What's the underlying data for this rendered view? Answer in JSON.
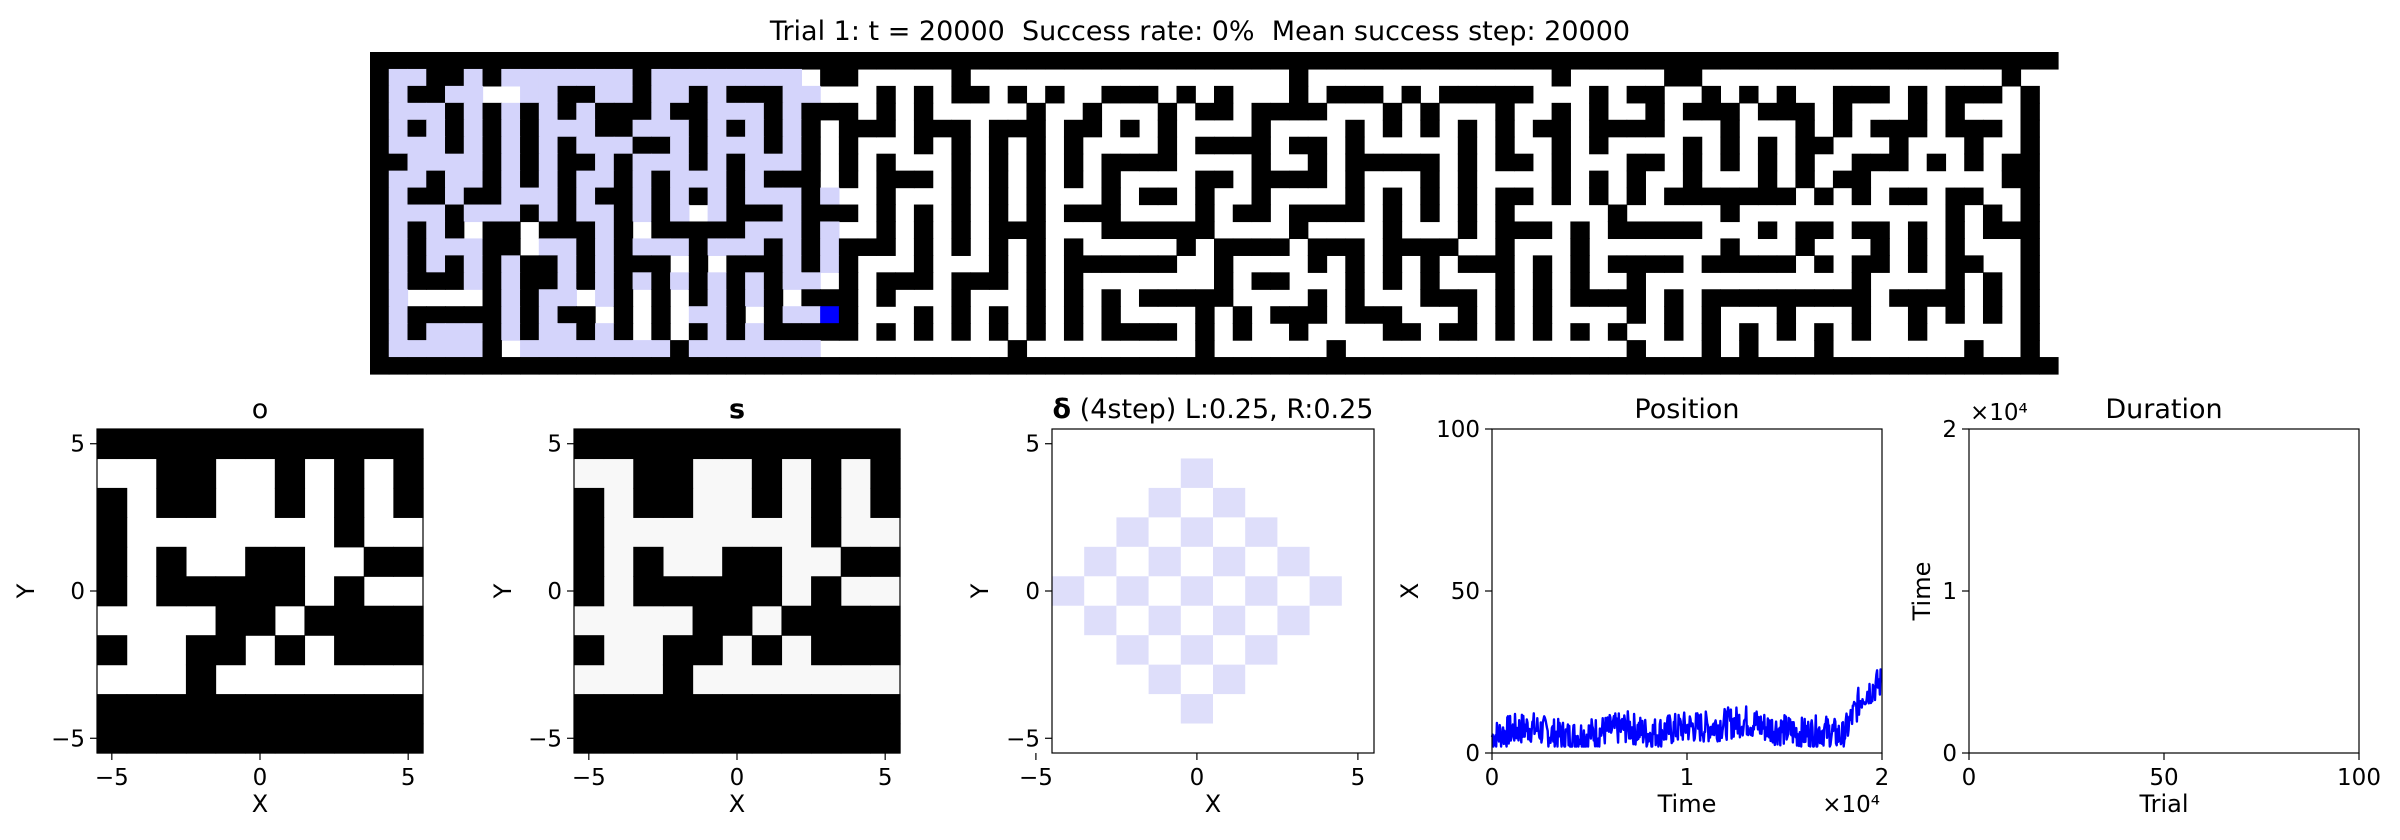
{
  "title": "Trial 1: t = 20000  Success rate: 0%  Mean success step: 20000",
  "colors": {
    "wall": "#000000",
    "path": "#ffffff",
    "visited": "#d4d4fb",
    "agent": "#0000ff",
    "series": "#0000ff",
    "delta_fill": "#dedefa"
  },
  "chart_data": [
    {
      "type": "heatmap",
      "name": "maze",
      "grid": [
        "##########################################################################################",
        "#..##.#.......#.........##.....#.................#.............#.....##................#",
        "#.##......##..#..#.###.....#.#.##.#.#..###.#.#...#.###.#.#####...#.##..#.#.#..###.#.###.#",
        "#...#.#.#.#.###.##...#.###.#.#.....#..#...#.##.####...#.#...#..#.#..#.###.###.#...#.#...#",
        "#.#.#.#.#...##...#.#.#.#.###.###.###.##.#.#....#....#.#.#.#.#.##.####...#...#.#.###.###.#",
        "#...#.#.#.#...##.#...#.#.#...#.#.#.#.#....#.####.##.#.....#.#..#.#....#.#.#.##...#...#..#",
        "##....#.#.##.#...#.#...#.#.#...#.#.#.#.####....#..#.#####.#.##.#...##.#.#.#.#..###.#.#.##",
        "#..#..#.#.#..#.#...#.###.#.###.#.#.#.#.#....##.####.#...#.#....#.#.#..#...#.#.##.......##",
        "#.##.##...#.##.#.#.#...#...#...#.#.#...#.##.#..#....#.#.#.#.##.#.#.#.#######.#.#.##.##..#",
        "#...#...#.#..#.#...###.###.#.#.#.#.#.###....#.##.####.#.#.#.#.....#.....#...........#.#.#",
        "#.#.#.##.###.#.#####...#...#.#.#.###...######....#....#...#.###.#.#####...#.##.##.#.#.###",
        "#.#...##...#.#...#...#.#.###.#.#.#.#.#.....#.####.###.####..#...#.......#...#...#.#.#...#",
        "#.#.#.#.##.#.###.#.###.#.#...#...#.#.######..#....#.#.#.#.###.#.#.####.#####.#.##.#.##..#",
        "#.###.#.##.#.#.#.#.#.#...#.###.###.#.#.......#.##...#.#.#...#.#.#..#...........#....#.#.#",
        "#.....#.#....#.#.#.#.#.###.#...#...#.#.#.#####....#.#...###.#.#.####.#.#########.####.#.#",
        "#.#####.#.##.#.#...#.#...#...#.#.#.#.#.#....#.#.###.###...#.#.#....#.#.#...#...#..#.#.#.#",
        "#.#...#.#..#.#.#.#.#.#####.#.#.#.#.#.#.####.#.#..#....##.##.#.#.#.#..#.#.#.#.#.#..#.....#",
        "#.....#.........#.................#.........#......#...............#...#.#...#.......#..#",
        "##########################################################################################"
      ],
      "visited": [
        [
          1,
          1
        ],
        [
          1,
          2
        ],
        [
          1,
          5
        ],
        [
          1,
          6
        ],
        [
          1,
          7
        ],
        [
          1,
          8
        ],
        [
          1,
          9
        ],
        [
          1,
          10
        ],
        [
          1,
          11
        ],
        [
          1,
          12
        ],
        [
          1,
          13
        ],
        [
          1,
          15
        ],
        [
          1,
          16
        ],
        [
          1,
          17
        ],
        [
          1,
          18
        ],
        [
          1,
          19
        ],
        [
          1,
          20
        ],
        [
          1,
          21
        ],
        [
          1,
          22
        ],
        [
          2,
          1
        ],
        [
          2,
          4
        ],
        [
          2,
          5
        ],
        [
          2,
          8
        ],
        [
          2,
          9
        ],
        [
          2,
          12
        ],
        [
          2,
          13
        ],
        [
          2,
          15
        ],
        [
          2,
          16
        ],
        [
          2,
          18
        ],
        [
          2,
          22
        ],
        [
          2,
          23
        ],
        [
          3,
          1
        ],
        [
          3,
          2
        ],
        [
          3,
          3
        ],
        [
          3,
          5
        ],
        [
          3,
          7
        ],
        [
          3,
          9
        ],
        [
          3,
          11
        ],
        [
          3,
          15
        ],
        [
          3,
          18
        ],
        [
          3,
          19
        ],
        [
          3,
          20
        ],
        [
          3,
          22
        ],
        [
          4,
          1
        ],
        [
          4,
          3
        ],
        [
          4,
          5
        ],
        [
          4,
          7
        ],
        [
          4,
          9
        ],
        [
          4,
          10
        ],
        [
          4,
          11
        ],
        [
          4,
          14
        ],
        [
          4,
          15
        ],
        [
          4,
          16
        ],
        [
          4,
          18
        ],
        [
          4,
          20
        ],
        [
          4,
          22
        ],
        [
          5,
          1
        ],
        [
          5,
          2
        ],
        [
          5,
          3
        ],
        [
          5,
          5
        ],
        [
          5,
          7
        ],
        [
          5,
          9
        ],
        [
          5,
          11
        ],
        [
          5,
          12
        ],
        [
          5,
          13
        ],
        [
          5,
          16
        ],
        [
          5,
          18
        ],
        [
          5,
          19
        ],
        [
          5,
          20
        ],
        [
          5,
          22
        ],
        [
          6,
          2
        ],
        [
          6,
          3
        ],
        [
          6,
          4
        ],
        [
          6,
          5
        ],
        [
          6,
          7
        ],
        [
          6,
          9
        ],
        [
          6,
          12
        ],
        [
          6,
          14
        ],
        [
          6,
          15
        ],
        [
          6,
          16
        ],
        [
          6,
          18
        ],
        [
          6,
          20
        ],
        [
          6,
          21
        ],
        [
          6,
          22
        ],
        [
          7,
          1
        ],
        [
          7,
          2
        ],
        [
          7,
          4
        ],
        [
          7,
          5
        ],
        [
          7,
          7
        ],
        [
          7,
          9
        ],
        [
          7,
          11
        ],
        [
          7,
          12
        ],
        [
          7,
          14
        ],
        [
          7,
          16
        ],
        [
          7,
          17
        ],
        [
          7,
          18
        ],
        [
          7,
          20
        ],
        [
          7,
          22
        ],
        [
          7,
          23
        ],
        [
          8,
          1
        ],
        [
          8,
          2
        ],
        [
          8,
          3
        ],
        [
          8,
          4
        ],
        [
          8,
          5
        ],
        [
          8,
          6
        ],
        [
          8,
          7
        ],
        [
          8,
          8
        ],
        [
          8,
          9
        ],
        [
          8,
          11
        ],
        [
          8,
          14
        ],
        [
          8,
          16
        ],
        [
          8,
          18
        ],
        [
          8,
          20
        ],
        [
          8,
          21
        ],
        [
          8,
          22
        ],
        [
          8,
          23
        ],
        [
          8,
          24
        ],
        [
          9,
          1
        ],
        [
          9,
          2
        ],
        [
          9,
          3
        ],
        [
          9,
          5
        ],
        [
          9,
          6
        ],
        [
          9,
          7
        ],
        [
          9,
          9
        ],
        [
          9,
          10
        ],
        [
          9,
          11
        ],
        [
          9,
          12
        ],
        [
          9,
          14
        ],
        [
          9,
          15
        ],
        [
          9,
          16
        ],
        [
          9,
          18
        ],
        [
          9,
          19
        ],
        [
          9,
          20
        ],
        [
          9,
          21
        ],
        [
          9,
          22
        ],
        [
          9,
          24
        ],
        [
          10,
          1
        ],
        [
          10,
          3
        ],
        [
          10,
          6
        ],
        [
          10,
          9
        ],
        [
          10,
          12
        ],
        [
          10,
          13
        ],
        [
          10,
          16
        ],
        [
          10,
          18
        ],
        [
          10,
          19
        ],
        [
          10,
          20
        ],
        [
          10,
          21
        ],
        [
          10,
          22
        ],
        [
          10,
          24
        ],
        [
          11,
          1
        ],
        [
          11,
          3
        ],
        [
          11,
          4
        ],
        [
          11,
          5
        ],
        [
          11,
          7
        ],
        [
          11,
          9
        ],
        [
          11,
          10
        ],
        [
          11,
          12
        ],
        [
          11,
          13
        ],
        [
          11,
          14
        ],
        [
          11,
          15
        ],
        [
          11,
          16
        ],
        [
          11,
          18
        ],
        [
          11,
          19
        ],
        [
          11,
          20
        ],
        [
          11,
          22
        ],
        [
          11,
          24
        ],
        [
          12,
          1
        ],
        [
          12,
          3
        ],
        [
          12,
          5
        ],
        [
          12,
          7
        ],
        [
          12,
          8
        ],
        [
          12,
          9
        ],
        [
          12,
          10
        ],
        [
          12,
          12
        ],
        [
          12,
          13
        ],
        [
          12,
          17
        ],
        [
          12,
          19
        ],
        [
          12,
          20
        ],
        [
          12,
          21
        ],
        [
          12,
          22
        ],
        [
          12,
          24
        ],
        [
          13,
          1
        ],
        [
          13,
          2
        ],
        [
          13,
          3
        ],
        [
          13,
          4
        ],
        [
          13,
          5
        ],
        [
          13,
          7
        ],
        [
          13,
          10
        ],
        [
          13,
          12
        ],
        [
          13,
          13
        ],
        [
          13,
          14
        ],
        [
          13,
          15
        ],
        [
          13,
          16
        ],
        [
          13,
          17
        ],
        [
          13,
          18
        ],
        [
          13,
          19
        ],
        [
          13,
          20
        ],
        [
          13,
          22
        ],
        [
          13,
          23
        ],
        [
          14,
          1
        ],
        [
          14,
          7
        ],
        [
          14,
          9
        ],
        [
          14,
          10
        ],
        [
          14,
          12
        ],
        [
          14,
          13
        ],
        [
          14,
          15
        ],
        [
          14,
          17
        ],
        [
          14,
          18
        ],
        [
          14,
          19
        ],
        [
          14,
          20
        ],
        [
          14,
          23
        ],
        [
          15,
          1
        ],
        [
          15,
          2
        ],
        [
          15,
          3
        ],
        [
          15,
          4
        ],
        [
          15,
          5
        ],
        [
          15,
          7
        ],
        [
          15,
          9
        ],
        [
          15,
          10
        ],
        [
          15,
          11
        ],
        [
          15,
          13
        ],
        [
          15,
          15
        ],
        [
          15,
          17
        ],
        [
          15,
          18
        ],
        [
          15,
          19
        ],
        [
          15,
          21
        ],
        [
          15,
          22
        ],
        [
          15,
          23
        ],
        [
          16,
          1
        ],
        [
          16,
          2
        ],
        [
          16,
          3
        ],
        [
          16,
          4
        ],
        [
          16,
          5
        ],
        [
          16,
          7
        ],
        [
          16,
          9
        ],
        [
          16,
          10
        ],
        [
          16,
          11
        ],
        [
          16,
          12
        ],
        [
          16,
          13
        ],
        [
          16,
          15
        ],
        [
          16,
          17
        ],
        [
          16,
          18
        ],
        [
          16,
          19
        ],
        [
          16,
          20
        ],
        [
          16,
          21
        ],
        [
          16,
          22
        ],
        [
          16,
          23
        ],
        [
          17,
          1
        ],
        [
          17,
          2
        ],
        [
          17,
          3
        ],
        [
          17,
          4
        ],
        [
          17,
          5
        ],
        [
          17,
          6
        ],
        [
          17,
          8
        ],
        [
          17,
          9
        ],
        [
          17,
          10
        ],
        [
          17,
          11
        ],
        [
          17,
          12
        ],
        [
          17,
          13
        ],
        [
          17,
          14
        ],
        [
          17,
          15
        ],
        [
          17,
          16
        ],
        [
          17,
          17
        ],
        [
          17,
          18
        ],
        [
          17,
          19
        ],
        [
          17,
          20
        ],
        [
          17,
          21
        ],
        [
          17,
          22
        ],
        [
          17,
          23
        ]
      ],
      "agent": [
        15,
        24
      ]
    },
    {
      "type": "heatmap",
      "title": "o",
      "xlabel": "X",
      "ylabel": "Y",
      "xlim": [
        -5.5,
        5.5
      ],
      "ylim": [
        -5.5,
        5.5
      ],
      "xticks": [
        "−5",
        "0",
        "5"
      ],
      "yticks": [
        "5",
        "0",
        "−5"
      ],
      "grid": [
        "###########",
        "..##..#.#.#",
        "#.##..#.#.#",
        "#.......#..",
        "#.#..##..##",
        "#.#####.#..",
        "....##.####",
        "#..##.#.###",
        "...#.......",
        "###########",
        "###########"
      ]
    },
    {
      "type": "heatmap",
      "title": "s",
      "xlabel": "X",
      "ylabel": "Y",
      "xlim": [
        -5.5,
        5.5
      ],
      "ylim": [
        -5.5,
        5.5
      ],
      "xticks": [
        "−5",
        "0",
        "5"
      ],
      "yticks": [
        "5",
        "0",
        "−5"
      ],
      "grid": [
        "###########",
        "..##..#.#.#",
        "#.##..#.#.#",
        "#.......#..",
        "#.#..##..##",
        "#.#####.#..",
        "....##.####",
        "#..##.#.###",
        "...#.......",
        "###########",
        "###########"
      ]
    },
    {
      "type": "heatmap",
      "title_bold": "δ",
      "title_rest": " (4step) L:0.25, R:0.25",
      "xlabel": "X",
      "ylabel": "Y",
      "xlim": [
        -4.5,
        5.5
      ],
      "ylim": [
        -5.5,
        5.5
      ],
      "xticks": [
        "−5",
        "0",
        "5"
      ],
      "yticks": [
        "5",
        "0",
        "−5"
      ],
      "cells": "cells where |x|+|y| is even and at most 4"
    },
    {
      "type": "line",
      "title": "Position",
      "xlabel": "Time",
      "ylabel": "X",
      "xlim": [
        0,
        20000
      ],
      "ylim": [
        0,
        100
      ],
      "xticks": [
        "0",
        "1",
        "2"
      ],
      "x_multiplier": "×10⁴",
      "yticks": [
        "0",
        "50",
        "100"
      ],
      "series": [
        {
          "x": [
            0,
            1000,
            2000,
            3000,
            4000,
            5000,
            6000,
            7000,
            8000,
            9000,
            10000,
            11000,
            12000,
            13000,
            14000,
            15000,
            16000,
            17000,
            18000,
            19000,
            20000
          ],
          "y": [
            5,
            7,
            8,
            6,
            5,
            6,
            7,
            8,
            6,
            7,
            8,
            8,
            9,
            10,
            8,
            7,
            6,
            7,
            5,
            18,
            22
          ]
        }
      ]
    },
    {
      "type": "line",
      "title": "Duration",
      "xlabel": "Trial",
      "ylabel": "Time",
      "xlim": [
        0,
        100
      ],
      "ylim": [
        0,
        20000
      ],
      "xticks": [
        "0",
        "50",
        "100"
      ],
      "yticks": [
        "0",
        "1",
        "2"
      ],
      "y_multiplier": "×10⁴",
      "series": []
    }
  ]
}
